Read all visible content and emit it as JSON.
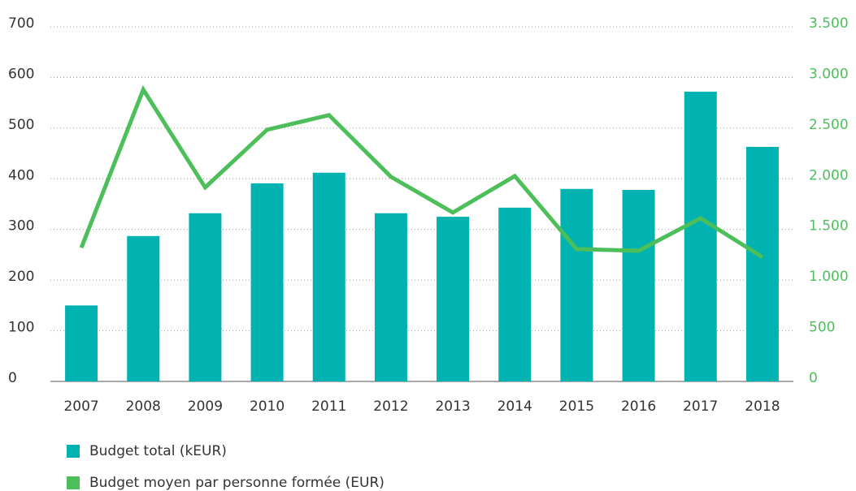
{
  "chart_data": {
    "type": "bar",
    "categories": [
      "2007",
      "2008",
      "2009",
      "2010",
      "2011",
      "2012",
      "2013",
      "2014",
      "2015",
      "2016",
      "2017",
      "2018"
    ],
    "series": [
      {
        "name": "Budget total (kEUR)",
        "type": "bar",
        "color": "#00b2b0",
        "values": [
          150,
          287,
          332,
          391,
          412,
          332,
          325,
          343,
          380,
          378,
          572,
          463
        ]
      },
      {
        "name": "Budget moyen par personne formée (EUR)",
        "type": "line",
        "axis": "y2",
        "color": "#4dbf5a",
        "values": [
          1320,
          2880,
          1915,
          2484,
          2628,
          2019,
          1667,
          2027,
          1306,
          1290,
          1611,
          1226
        ]
      }
    ],
    "ylim": [
      0,
      700
    ],
    "yticks": [
      0,
      100,
      200,
      300,
      400,
      500,
      600,
      700
    ],
    "y2lim": [
      0,
      3500
    ],
    "y2ticks": [
      0,
      500,
      {
        "value": 1000,
        "label": "1.000"
      },
      {
        "value": 1500,
        "label": "1.500"
      },
      {
        "value": 2000,
        "label": "2.000"
      },
      {
        "value": 2500,
        "label": "2.500"
      },
      {
        "value": 3000,
        "label": "3.000"
      },
      {
        "value": 3500,
        "label": "3.500"
      }
    ],
    "grid": true
  }
}
